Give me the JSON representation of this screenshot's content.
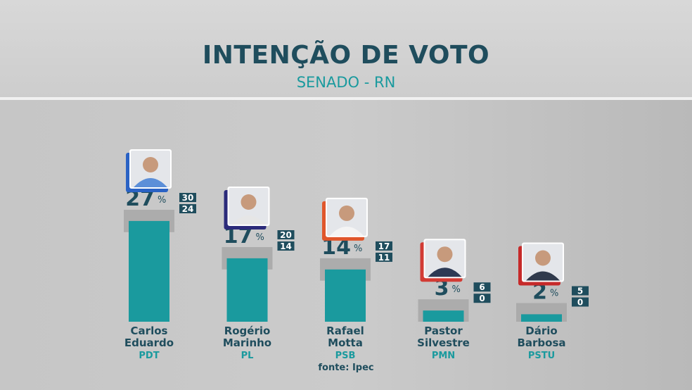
{
  "header": {
    "title": "INTENÇÃO DE VOTO",
    "subtitle": "SENADO - RN"
  },
  "source": "fonte: Ipec",
  "colors": {
    "bar": "#1a9a9e",
    "range": "#a9a9a9",
    "title": "#1f4d5d",
    "accent": "#1a9a9e",
    "range_box": "#1f4d5d"
  },
  "chart_data": {
    "type": "bar",
    "title": "INTENÇÃO DE VOTO",
    "subtitle": "SENADO - RN",
    "unit": "%",
    "ylim": [
      0,
      30
    ],
    "categories": [
      "Carlos Eduardo",
      "Rogério Marinho",
      "Rafael Motta",
      "Pastor Silvestre",
      "Dário Barbosa"
    ],
    "candidates": [
      {
        "first": "Carlos",
        "last": "Eduardo",
        "party": "PDT",
        "value": 27,
        "max": 30,
        "min": 24,
        "photo_color": "#2a62c4",
        "shirt": "#5c8fd8"
      },
      {
        "first": "Rogério",
        "last": "Marinho",
        "party": "PL",
        "value": 17,
        "max": 20,
        "min": 14,
        "photo_color": "#2b2a7a",
        "shirt": "#e6e6e6"
      },
      {
        "first": "Rafael",
        "last": "Motta",
        "party": "PSB",
        "value": 14,
        "max": 17,
        "min": 11,
        "photo_color": "#e0562b",
        "shirt": "#f4f4f4"
      },
      {
        "first": "Pastor",
        "last": "Silvestre",
        "party": "PMN",
        "value": 3,
        "max": 6,
        "min": 0,
        "photo_color": "#d23b34",
        "shirt": "#2d3a55"
      },
      {
        "first": "Dário",
        "last": "Barbosa",
        "party": "PSTU",
        "value": 2,
        "max": 5,
        "min": 0,
        "photo_color": "#c62a2a",
        "shirt": "#303a4c"
      }
    ]
  }
}
